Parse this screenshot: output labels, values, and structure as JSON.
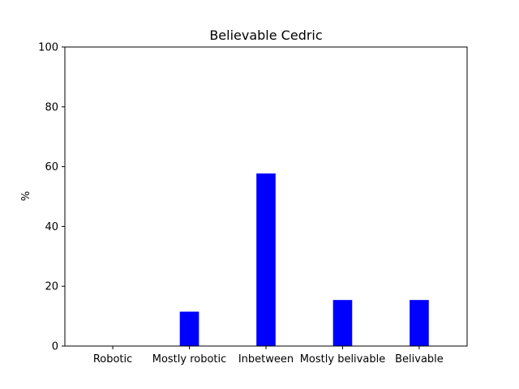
{
  "chart_data": {
    "type": "bar",
    "title": "Believable Cedric",
    "xlabel": "",
    "ylabel": "%",
    "categories": [
      "Robotic",
      "Mostly robotic",
      "Inbetween",
      "Mostly belivable",
      "Belivable"
    ],
    "values": [
      0,
      11.5,
      57.7,
      15.4,
      15.4
    ],
    "ylim": [
      0,
      100
    ],
    "yticks": [
      "0",
      "20",
      "40",
      "60",
      "80",
      "100"
    ],
    "grid": false,
    "legend": "none",
    "bar_color": "#0000ff"
  }
}
